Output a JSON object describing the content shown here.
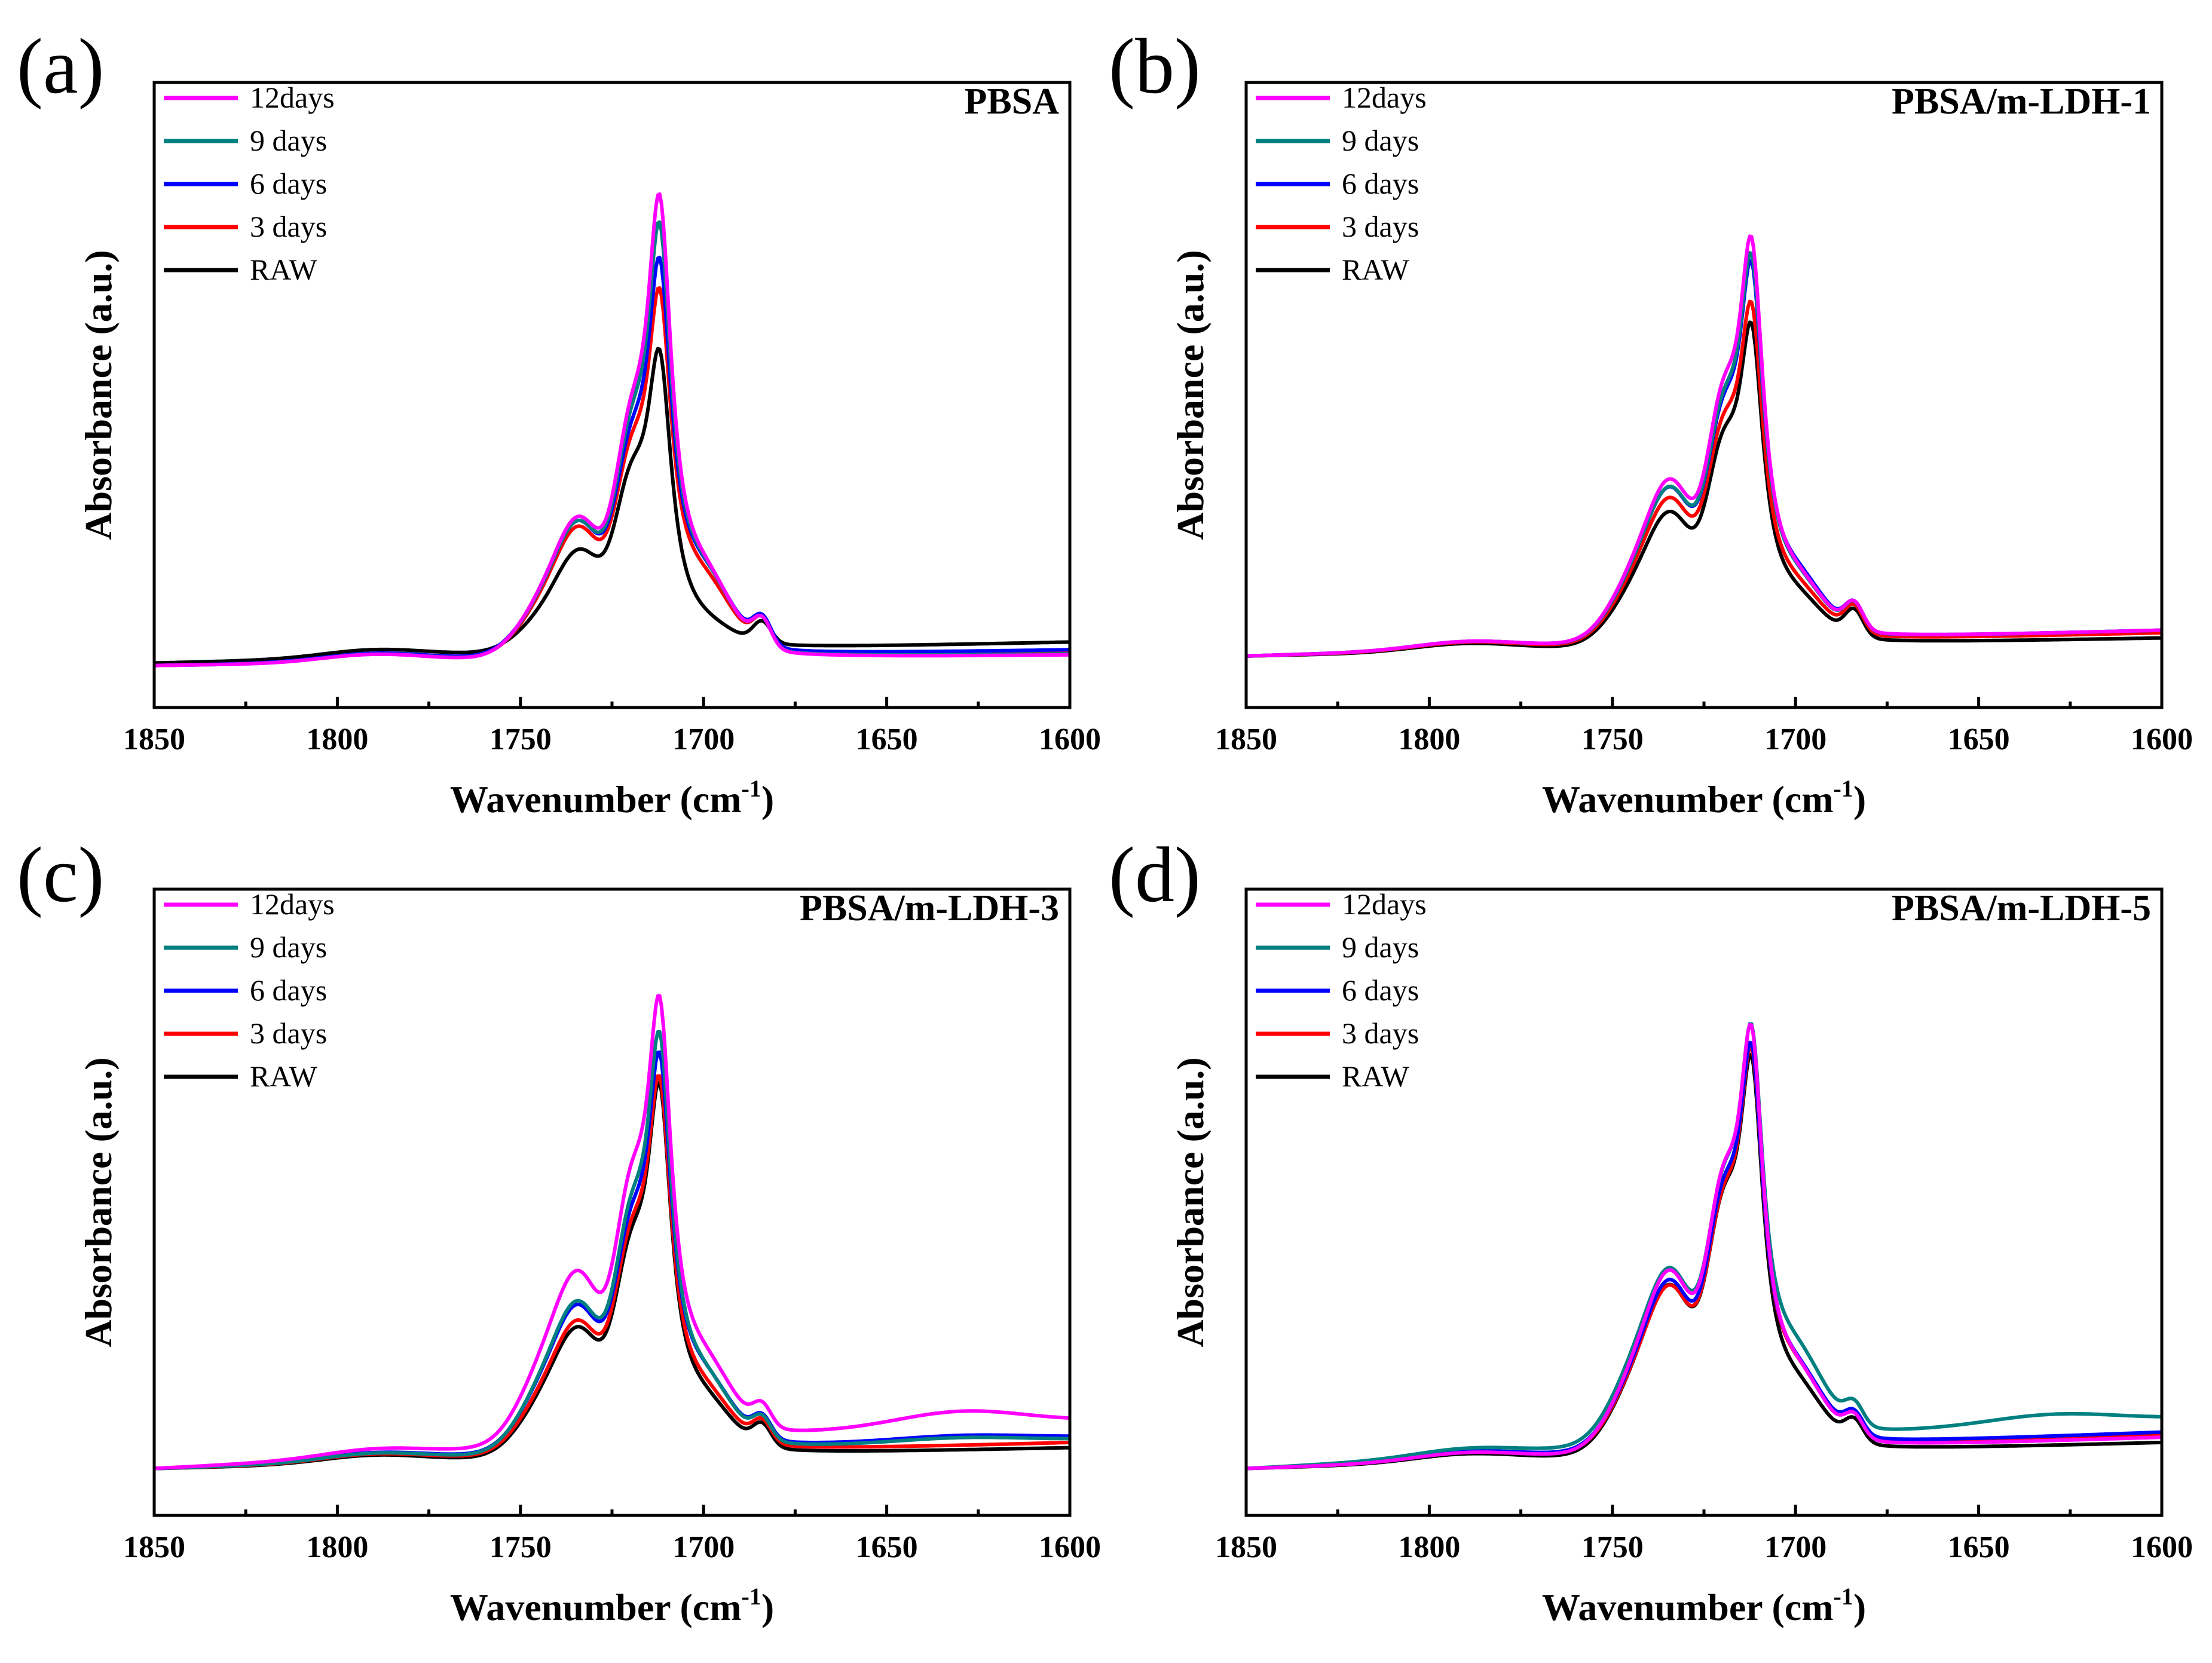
{
  "figure": {
    "colors": {
      "12days": "#ff00ff",
      "9 days": "#008080",
      "6 days": "#0000ff",
      "3 days": "#ff0000",
      "RAW": "#000000"
    }
  },
  "chart_data": [
    {
      "type": "line",
      "panel_label": "(a)",
      "title": "PBSA",
      "xlabel": "Wavenumber (cm",
      "xlabel_sup": "-1",
      "xlabel_close": ")",
      "ylabel": "Absorbance (a.u.)",
      "xlim": [
        1850,
        1600
      ],
      "ylim": [
        -0.08,
        1.12
      ],
      "xticks": [
        1850,
        1800,
        1750,
        1700,
        1650,
        1600
      ],
      "legend_position": "top-left",
      "series": [
        {
          "name": "12days",
          "base0": 0.0,
          "base1": 0.02,
          "peak": 1.0,
          "shoulder": 0.55,
          "s1733": 0.34,
          "s1740": 0.24,
          "wing": 0.13,
          "sh1685": 0.05,
          "rise": 0.0
        },
        {
          "name": "9 days",
          "base0": 0.0,
          "base1": 0.022,
          "peak": 0.94,
          "shoulder": 0.53,
          "s1733": 0.33,
          "s1740": 0.235,
          "wing": 0.13,
          "sh1685": 0.05,
          "rise": 0.0
        },
        {
          "name": "6 days",
          "base0": 0.0,
          "base1": 0.03,
          "peak": 0.86,
          "shoulder": 0.5,
          "s1733": 0.33,
          "s1740": 0.23,
          "wing": 0.13,
          "sh1685": 0.05,
          "rise": 0.0
        },
        {
          "name": "3 days",
          "base0": 0.0,
          "base1": 0.028,
          "peak": 0.8,
          "shoulder": 0.48,
          "s1733": 0.32,
          "s1740": 0.22,
          "wing": 0.12,
          "sh1685": 0.05,
          "rise": 0.0
        },
        {
          "name": "RAW",
          "base0": 0.005,
          "base1": 0.04,
          "peak": 0.68,
          "shoulder": 0.42,
          "s1733": 0.26,
          "s1740": 0.15,
          "wing": 0.03,
          "sh1685": 0.04,
          "rise": 0.0
        }
      ]
    },
    {
      "type": "line",
      "panel_label": "(b)",
      "title": "PBSA/m-LDH-1",
      "xlabel": "Wavenumber (cm",
      "xlabel_sup": "-1",
      "xlabel_close": ")",
      "ylabel": "Absorbance (a.u.)",
      "xlim": [
        1850,
        1600
      ],
      "ylim": [
        -0.1,
        1.12
      ],
      "xticks": [
        1850,
        1800,
        1750,
        1700,
        1650,
        1600
      ],
      "legend_position": "top-left",
      "series": [
        {
          "name": "12days",
          "base0": 0.0,
          "base1": 0.05,
          "peak": 0.92,
          "shoulder": 0.6,
          "s1733": 0.4,
          "s1740": 0.3,
          "wing": 0.09,
          "sh1685": 0.05,
          "rise": 0.0
        },
        {
          "name": "9 days",
          "base0": 0.0,
          "base1": 0.05,
          "peak": 0.88,
          "shoulder": 0.57,
          "s1733": 0.38,
          "s1740": 0.29,
          "wing": 0.09,
          "sh1685": 0.05,
          "rise": 0.0
        },
        {
          "name": "6 days",
          "base0": 0.0,
          "base1": 0.05,
          "peak": 0.86,
          "shoulder": 0.56,
          "s1733": 0.38,
          "s1740": 0.29,
          "wing": 0.1,
          "sh1685": 0.05,
          "rise": 0.0
        },
        {
          "name": "3 days",
          "base0": 0.0,
          "base1": 0.045,
          "peak": 0.78,
          "shoulder": 0.53,
          "s1733": 0.36,
          "s1740": 0.27,
          "wing": 0.08,
          "sh1685": 0.05,
          "rise": 0.0
        },
        {
          "name": "RAW",
          "base0": 0.0,
          "base1": 0.035,
          "peak": 0.74,
          "shoulder": 0.5,
          "s1733": 0.33,
          "s1740": 0.25,
          "wing": 0.07,
          "sh1685": 0.05,
          "rise": 0.0
        }
      ]
    },
    {
      "type": "line",
      "panel_label": "(c)",
      "title": "PBSA/m-LDH-3",
      "xlabel": "Wavenumber (cm",
      "xlabel_sup": "-1",
      "xlabel_close": ")",
      "ylabel": "Absorbance (a.u.)",
      "xlim": [
        1850,
        1600
      ],
      "ylim": [
        -0.09,
        1.12
      ],
      "xticks": [
        1850,
        1800,
        1750,
        1700,
        1650,
        1600
      ],
      "legend_position": "top-left",
      "series": [
        {
          "name": "12days",
          "base0": 0.0,
          "base1": 0.09,
          "peak": 0.99,
          "shoulder": 0.62,
          "s1733": 0.41,
          "s1740": 0.34,
          "wing": 0.12,
          "sh1685": 0.04,
          "rise": 0.03
        },
        {
          "name": "9 days",
          "base0": 0.0,
          "base1": 0.055,
          "peak": 0.93,
          "shoulder": 0.57,
          "s1733": 0.36,
          "s1740": 0.29,
          "wing": 0.11,
          "sh1685": 0.04,
          "rise": 0.01
        },
        {
          "name": "6 days",
          "base0": 0.0,
          "base1": 0.06,
          "peak": 0.88,
          "shoulder": 0.54,
          "s1733": 0.35,
          "s1740": 0.28,
          "wing": 0.11,
          "sh1685": 0.04,
          "rise": 0.01
        },
        {
          "name": "3 days",
          "base0": 0.0,
          "base1": 0.05,
          "peak": 0.84,
          "shoulder": 0.52,
          "s1733": 0.32,
          "s1740": 0.25,
          "wing": 0.09,
          "sh1685": 0.04,
          "rise": 0.0
        },
        {
          "name": "RAW",
          "base0": 0.0,
          "base1": 0.04,
          "peak": 0.83,
          "shoulder": 0.5,
          "s1733": 0.31,
          "s1740": 0.24,
          "wing": 0.08,
          "sh1685": 0.04,
          "rise": 0.0
        }
      ]
    },
    {
      "type": "line",
      "panel_label": "(d)",
      "title": "PBSA/m-LDH-5",
      "xlabel": "Wavenumber (cm",
      "xlabel_sup": "-1",
      "xlabel_close": ")",
      "ylabel": "Absorbance (a.u.)",
      "xlim": [
        1850,
        1600
      ],
      "ylim": [
        -0.09,
        1.12
      ],
      "xticks": [
        1850,
        1800,
        1750,
        1700,
        1650,
        1600
      ],
      "legend_position": "top-left",
      "series": [
        {
          "name": "12days",
          "base0": 0.0,
          "base1": 0.06,
          "peak": 0.96,
          "shoulder": 0.66,
          "s1733": 0.44,
          "s1740": 0.34,
          "wing": 0.12,
          "sh1685": 0.04,
          "rise": 0.0
        },
        {
          "name": "9 days",
          "base0": 0.0,
          "base1": 0.095,
          "peak": 0.93,
          "shoulder": 0.63,
          "s1733": 0.42,
          "s1740": 0.34,
          "wing": 0.14,
          "sh1685": 0.04,
          "rise": 0.02
        },
        {
          "name": "6 days",
          "base0": 0.0,
          "base1": 0.07,
          "peak": 0.91,
          "shoulder": 0.62,
          "s1733": 0.41,
          "s1740": 0.32,
          "wing": 0.12,
          "sh1685": 0.04,
          "rise": 0.0
        },
        {
          "name": "3 days",
          "base0": 0.0,
          "base1": 0.065,
          "peak": 0.9,
          "shoulder": 0.6,
          "s1733": 0.4,
          "s1740": 0.31,
          "wing": 0.12,
          "sh1685": 0.04,
          "rise": 0.0
        },
        {
          "name": "RAW",
          "base0": 0.0,
          "base1": 0.05,
          "peak": 0.9,
          "shoulder": 0.61,
          "s1733": 0.41,
          "s1740": 0.32,
          "wing": 0.1,
          "sh1685": 0.04,
          "rise": 0.0
        }
      ]
    }
  ]
}
